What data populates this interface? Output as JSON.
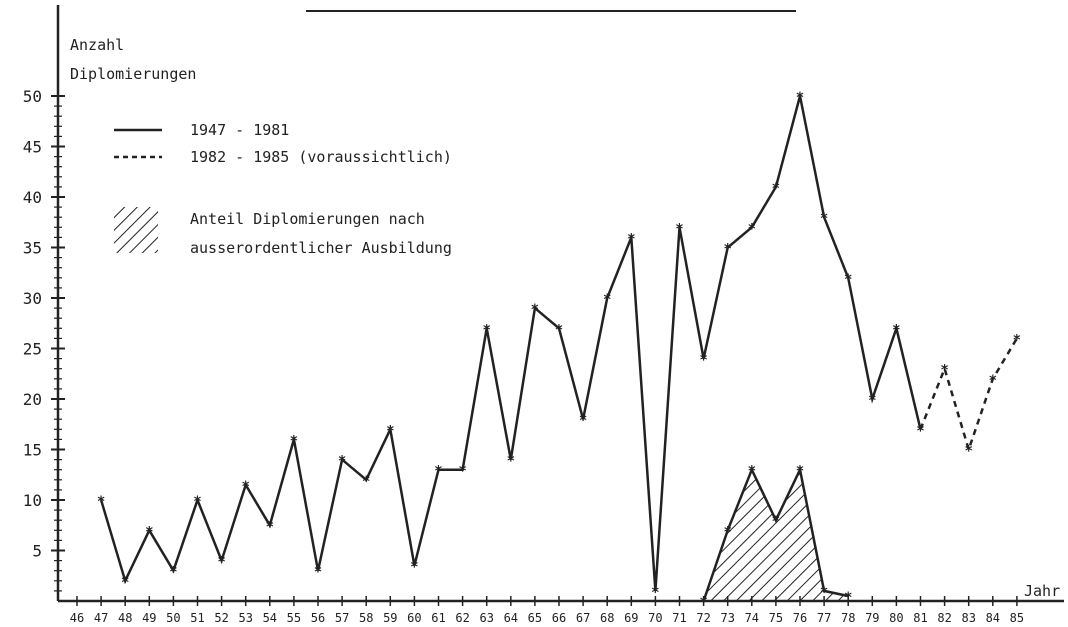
{
  "chart_data": {
    "type": "line",
    "ylabel_line1": "Anzahl",
    "ylabel_line2": "Diplomierungen",
    "xlabel": "Jahr",
    "ylim": [
      0,
      50
    ],
    "xlim": [
      46,
      85
    ],
    "y_ticks": [
      5,
      10,
      15,
      20,
      25,
      30,
      35,
      40,
      45,
      50
    ],
    "x_ticks": [
      46,
      47,
      48,
      49,
      50,
      51,
      52,
      53,
      54,
      55,
      56,
      57,
      58,
      59,
      60,
      61,
      62,
      63,
      64,
      65,
      66,
      67,
      68,
      69,
      70,
      71,
      72,
      73,
      74,
      75,
      76,
      77,
      78,
      79,
      80,
      81,
      82,
      83,
      84,
      85
    ],
    "legend": [
      {
        "label": "1947 - 1981",
        "style": "solid"
      },
      {
        "label": "1982 - 1985 (voraussichtlich)",
        "style": "dashed"
      },
      {
        "label_line1": "Anteil Diplomierungen nach",
        "label_line2": "ausserordentlicher Ausbildung",
        "style": "hatched"
      }
    ],
    "series": [
      {
        "style": "solid",
        "x": [
          47,
          48,
          49,
          50,
          51,
          52,
          53,
          54,
          55,
          56,
          57,
          58,
          59,
          60,
          61,
          62,
          63,
          64,
          65,
          66,
          67,
          68,
          69,
          70,
          71,
          72,
          73,
          74,
          75,
          76,
          77,
          78,
          79,
          80,
          81
        ],
        "y": [
          10,
          2,
          7,
          3,
          10,
          4,
          11.5,
          7.5,
          16,
          3,
          14,
          12,
          17,
          3.5,
          13,
          13,
          27,
          14,
          29,
          27,
          18,
          30,
          36,
          1,
          37,
          24,
          35,
          37,
          41,
          50,
          38,
          32,
          20,
          27,
          17
        ]
      },
      {
        "style": "dashed",
        "x": [
          81,
          82,
          83,
          84,
          85
        ],
        "y": [
          17,
          23,
          15,
          22,
          26
        ]
      },
      {
        "style": "hatched",
        "x": [
          72,
          73,
          74,
          75,
          76,
          77,
          78
        ],
        "y": [
          0,
          7,
          13,
          8,
          13,
          1,
          0.5
        ]
      }
    ]
  }
}
